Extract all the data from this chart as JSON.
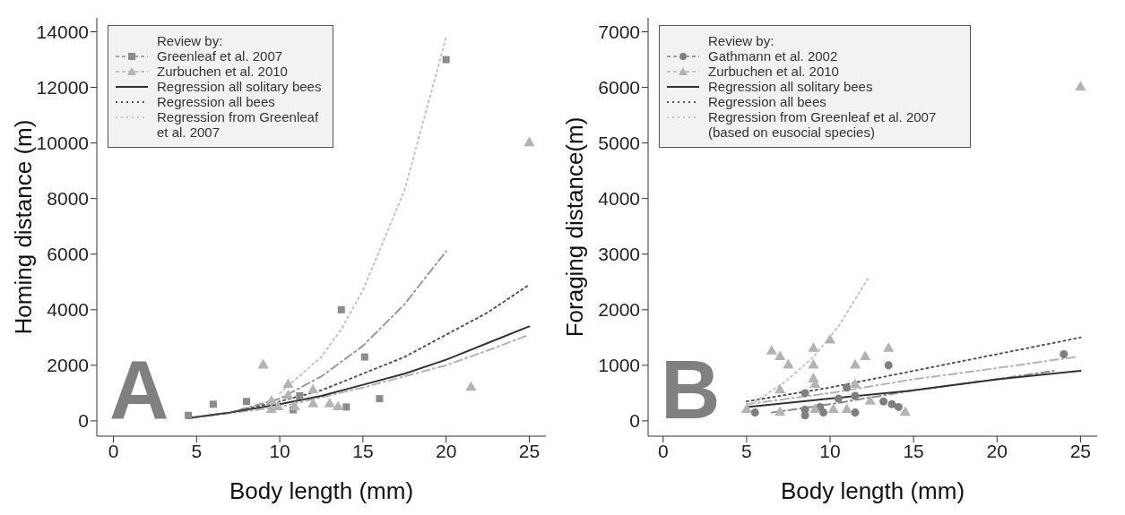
{
  "chart_data": [
    {
      "type": "scatter",
      "xlabel": "Body length (mm)",
      "ylabel": "Homing distance (m)",
      "xlim": [
        -1,
        26
      ],
      "ylim": [
        -550,
        14500
      ],
      "xticks": [
        0,
        5,
        10,
        15,
        20,
        25
      ],
      "yticks": [
        0,
        2000,
        4000,
        6000,
        8000,
        10000,
        12000,
        14000
      ],
      "legend": "top left",
      "legend_title": "Review by:",
      "annotations": [
        "A"
      ],
      "series": [
        {
          "name": "Greenleaf et al. 2007",
          "type": "scatter",
          "marker": "square",
          "color": "#8c8c8c",
          "x": [
            4.5,
            6,
            8,
            10.8,
            11.2,
            13.7,
            14,
            15.1,
            16,
            20
          ],
          "values": [
            200,
            600,
            700,
            400,
            900,
            4000,
            500,
            2300,
            800,
            13000
          ]
        },
        {
          "name": "Zurbuchen et al. 2010",
          "type": "scatter",
          "marker": "triangle",
          "color": "#b3b3b3",
          "x": [
            9,
            9.5,
            9.5,
            9.9,
            10.5,
            10.5,
            10.9,
            12,
            12,
            13,
            13.5,
            21.5,
            25
          ],
          "values": [
            2000,
            700,
            400,
            500,
            1300,
            900,
            500,
            1100,
            600,
            600,
            500,
            1200,
            10000
          ]
        },
        {
          "type": "line",
          "line_style": "dashed",
          "color": "#999999",
          "x": [
            4.5,
            7,
            10,
            12.5,
            15,
            17.5,
            20
          ],
          "values": [
            100,
            300,
            800,
            1600,
            2700,
            4200,
            6100
          ]
        },
        {
          "type": "line",
          "line_style": "dashed",
          "color": "#b3b3b3",
          "x": [
            4.5,
            10,
            15,
            20,
            22.8,
            25
          ],
          "values": [
            100,
            500,
            1200,
            2000,
            2600,
            3100
          ]
        },
        {
          "name": "Regression all solitary bees",
          "type": "line",
          "line_style": "solid",
          "color": "#333333",
          "x": [
            4.5,
            7,
            10,
            12.5,
            15,
            17.5,
            20,
            22.5,
            25
          ],
          "values": [
            100,
            300,
            600,
            900,
            1300,
            1700,
            2200,
            2800,
            3400
          ]
        },
        {
          "name": "Regression all bees",
          "type": "line",
          "line_style": "dotted",
          "color": "#555555",
          "x": [
            4.5,
            7,
            10,
            12.5,
            15,
            17.5,
            20,
            22.5,
            25
          ],
          "values": [
            100,
            300,
            700,
            1100,
            1700,
            2300,
            3100,
            3900,
            4900
          ]
        },
        {
          "name": "Regression from Greenleaf et al. 2007",
          "type": "line",
          "line_style": "dotted",
          "color": "#c4c4c4",
          "x": [
            10,
            12.5,
            13.7,
            15,
            17.5,
            20
          ],
          "values": [
            1000,
            2300,
            3300,
            4700,
            8300,
            13800
          ]
        }
      ]
    },
    {
      "type": "scatter",
      "xlabel": "Body length (mm)",
      "ylabel": "Foraging distance(m)",
      "xlim": [
        -0.9,
        26
      ],
      "ylim": [
        -275,
        7250
      ],
      "xticks": [
        0,
        5,
        10,
        15,
        20,
        25
      ],
      "yticks": [
        0,
        1000,
        2000,
        3000,
        4000,
        5000,
        6000,
        7000
      ],
      "legend": "top left",
      "legend_title": "Review by:",
      "annotations": [
        "B"
      ],
      "series": [
        {
          "name": "Gathmann et al. 2002",
          "type": "scatter",
          "marker": "circle",
          "color": "#7f7f7f",
          "x": [
            5.5,
            8.5,
            8.5,
            8.5,
            9.4,
            9.6,
            10.5,
            11,
            11.5,
            11.5,
            13.2,
            13.5,
            13.7,
            14.1,
            24
          ],
          "values": [
            150,
            500,
            100,
            200,
            250,
            150,
            400,
            600,
            150,
            450,
            350,
            1000,
            300,
            250,
            1200
          ]
        },
        {
          "name": "Zurbuchen et al. 2010",
          "type": "scatter",
          "marker": "triangle",
          "color": "#b3b3b3",
          "x": [
            5,
            6.5,
            7,
            7.5,
            7,
            7,
            9,
            9,
            9,
            9.1,
            9.1,
            10,
            10.2,
            11,
            11.5,
            11.5,
            12.1,
            12.4,
            13.5,
            14.5,
            25
          ],
          "values": [
            200,
            1250,
            1150,
            1000,
            550,
            150,
            1300,
            1000,
            750,
            650,
            200,
            1450,
            200,
            200,
            1000,
            650,
            1150,
            350,
            1300,
            150,
            6000
          ]
        },
        {
          "type": "line",
          "line_style": "dashed",
          "color": "#8c8c8c",
          "x": [
            6.5,
            10,
            15,
            20,
            23.4
          ],
          "values": [
            150,
            300,
            550,
            750,
            900
          ]
        },
        {
          "type": "line",
          "line_style": "dashed",
          "color": "#b3b3b3",
          "x": [
            5,
            10,
            15,
            20,
            24.7
          ],
          "values": [
            300,
            500,
            750,
            950,
            1150
          ]
        },
        {
          "name": "Regression all solitary bees",
          "type": "line",
          "line_style": "solid",
          "color": "#333333",
          "x": [
            5,
            10,
            15,
            20,
            25
          ],
          "values": [
            250,
            400,
            550,
            750,
            900
          ]
        },
        {
          "name": "Regression all bees",
          "type": "line",
          "line_style": "dotted",
          "color": "#555555",
          "x": [
            5,
            10,
            15,
            20,
            25
          ],
          "values": [
            350,
            600,
            900,
            1200,
            1500
          ]
        },
        {
          "name": "Regression from Greenleaf et al. 2007 (based on eusocial species)",
          "type": "line",
          "line_style": "dotted",
          "color": "#c4c4c4",
          "x": [
            5,
            7.3,
            9,
            10.5,
            12.35
          ],
          "values": [
            250,
            700,
            1150,
            1700,
            2600
          ]
        }
      ]
    }
  ]
}
